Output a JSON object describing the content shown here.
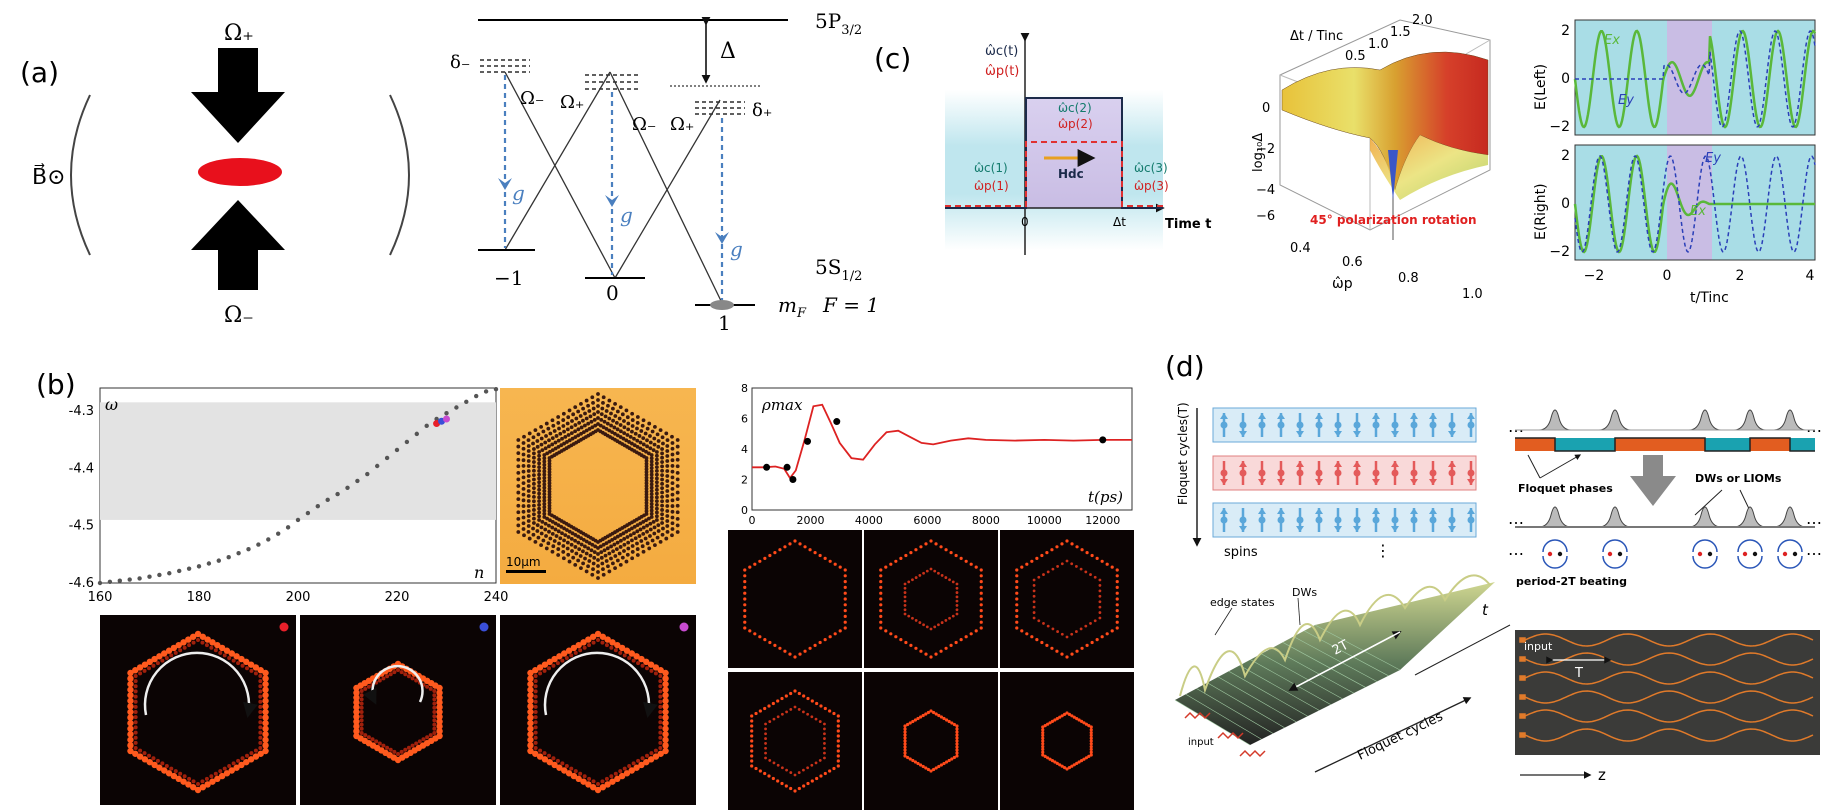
{
  "panels": {
    "a": {
      "label": "(a)",
      "omega_plus": "Ω₊",
      "omega_minus": "Ω₋",
      "b_field": "B⃗⊙",
      "level_top": "5P",
      "level_top_sub": "3/2",
      "level_bottom": "5S",
      "level_bottom_sub": "1/2",
      "delta": "Δ",
      "delta_minus": "δ₋",
      "delta_plus": "δ₊",
      "g": "g",
      "ground_labels": [
        "−1",
        "0",
        "1"
      ],
      "mF_label": "m",
      "mF_sub": "F",
      "F_label": "F = 1"
    },
    "c": {
      "label": "(c)",
      "pulse": {
        "omega_c_t": "ω̂c(t)",
        "omega_p_t": "ω̂p(t)",
        "omega_c1": "ω̂c(1)",
        "omega_p1": "ω̂p(1)",
        "omega_c2": "ω̂c(2)",
        "omega_p2": "ω̂p(2)",
        "omega_c3": "ω̂c(3)",
        "omega_p3": "ω̂p(3)",
        "H_dc": "Hdc",
        "zero": "0",
        "dt": "Δt",
        "time": "Time t"
      },
      "surface": {
        "z_label": "log₁₀Δ",
        "y_label": "Δt / Tinc",
        "x_label": "ω̂p",
        "annotation": "45° polarization rotation",
        "z_ticks": [
          "0",
          "−2",
          "−4",
          "−6"
        ],
        "y_ticks": [
          "0.5",
          "1.0",
          "1.5",
          "2.0"
        ],
        "x_ticks": [
          "0.4",
          "0.6",
          "0.8",
          "1.0"
        ]
      },
      "field": {
        "top_ylabel": "E(Left)",
        "bottom_ylabel": "E(Right)",
        "xlabel": "t/Tinc",
        "y_ticks": [
          "2",
          "0",
          "−2"
        ],
        "x_ticks": [
          "−2",
          "0",
          "2",
          "4"
        ],
        "Ex": "Ex",
        "Ey": "Ey"
      }
    },
    "b": {
      "label": "(b)",
      "spectrum": {
        "y_label": "ω",
        "x_label": "n",
        "x_ticks": [
          "160",
          "180",
          "200",
          "220",
          "240"
        ],
        "y_ticks": [
          "-4.3",
          "-4.4",
          "-4.5",
          "-4.6"
        ]
      },
      "scale_bar": "10μm",
      "rho": {
        "y_label": "ρmax",
        "x_label": "t(ps)",
        "x_ticks": [
          "0",
          "2000",
          "4000",
          "6000",
          "8000",
          "10000",
          "12000"
        ],
        "y_ticks": [
          "0",
          "2",
          "4",
          "6",
          "8"
        ]
      }
    },
    "d": {
      "label": "(d)",
      "floquet_axis": "Floquet cycles(T)",
      "spins": "spins",
      "dots": "⋮",
      "floquet_phases": "Floquet phases",
      "dws_lioms": "DWs or LIOMs",
      "beating": "period-2T beating",
      "edge_states": "edge states",
      "dws": "DWs",
      "two_t": "2T",
      "t_axis": "t",
      "floquet_cycles": "Floquet cycles",
      "input": "input",
      "input2": "input",
      "T": "T",
      "z": "z",
      "ellipsis": "…"
    }
  },
  "chart_data": [
    {
      "type": "scatter",
      "xlabel": "n",
      "ylabel": "ω",
      "xlim": [
        160,
        240
      ],
      "ylim": [
        -4.6,
        -4.26
      ],
      "highlight_band": [
        -4.49,
        -4.285
      ],
      "x": [
        160,
        162,
        164,
        166,
        168,
        170,
        172,
        174,
        176,
        178,
        180,
        182,
        184,
        186,
        188,
        190,
        192,
        194,
        196,
        198,
        200,
        202,
        204,
        206,
        208,
        210,
        212,
        214,
        216,
        218,
        220,
        222,
        224,
        226,
        228,
        230,
        232,
        234,
        236,
        238,
        240
      ],
      "y": [
        -4.6,
        -4.598,
        -4.596,
        -4.594,
        -4.592,
        -4.589,
        -4.586,
        -4.583,
        -4.579,
        -4.575,
        -4.571,
        -4.566,
        -4.561,
        -4.555,
        -4.548,
        -4.541,
        -4.533,
        -4.524,
        -4.514,
        -4.503,
        -4.49,
        -4.478,
        -4.466,
        -4.455,
        -4.445,
        -4.434,
        -4.422,
        -4.41,
        -4.396,
        -4.382,
        -4.368,
        -4.354,
        -4.34,
        -4.326,
        -4.314,
        -4.304,
        -4.294,
        -4.284,
        -4.274,
        -4.266,
        -4.262
      ],
      "highlight_points": [
        {
          "x": 228,
          "y": -4.322,
          "color": "#e8202a"
        },
        {
          "x": 229,
          "y": -4.318,
          "color": "#3a4fd8"
        },
        {
          "x": 230,
          "y": -4.314,
          "color": "#c84bd0"
        }
      ]
    },
    {
      "type": "line",
      "xlabel": "t(ps)",
      "ylabel": "ρmax",
      "xlim": [
        0,
        13000
      ],
      "ylim": [
        0,
        8
      ],
      "x": [
        0,
        400,
        800,
        1100,
        1300,
        1500,
        1800,
        2100,
        2400,
        2700,
        3000,
        3400,
        3800,
        4200,
        4600,
        5000,
        5400,
        5800,
        6200,
        6800,
        7400,
        8000,
        9000,
        10000,
        11000,
        12000,
        13000
      ],
      "y": [
        2.8,
        2.8,
        2.85,
        2.7,
        2.1,
        2.6,
        4.6,
        6.8,
        6.9,
        5.7,
        4.4,
        3.4,
        3.3,
        4.3,
        5.1,
        5.2,
        4.8,
        4.4,
        4.3,
        4.55,
        4.7,
        4.6,
        4.55,
        4.6,
        4.55,
        4.6,
        4.6
      ],
      "series_color": "#d22",
      "markers": [
        {
          "x": 500,
          "y": 2.8
        },
        {
          "x": 1200,
          "y": 2.8
        },
        {
          "x": 1400,
          "y": 2.0
        },
        {
          "x": 1900,
          "y": 4.5
        },
        {
          "x": 2900,
          "y": 5.8
        },
        {
          "x": 12000,
          "y": 4.6
        }
      ]
    }
  ],
  "colors": {
    "red_line": "#d71f1f",
    "blue_dash": "#4a7fbf",
    "green": "#6cc04a",
    "cyan_bg": "#a9dde6",
    "purple_bg": "#c9bde4",
    "orange_panel": "#f6b24c",
    "spin_blue": "#5aa7da",
    "spin_red": "#e45a5a"
  }
}
